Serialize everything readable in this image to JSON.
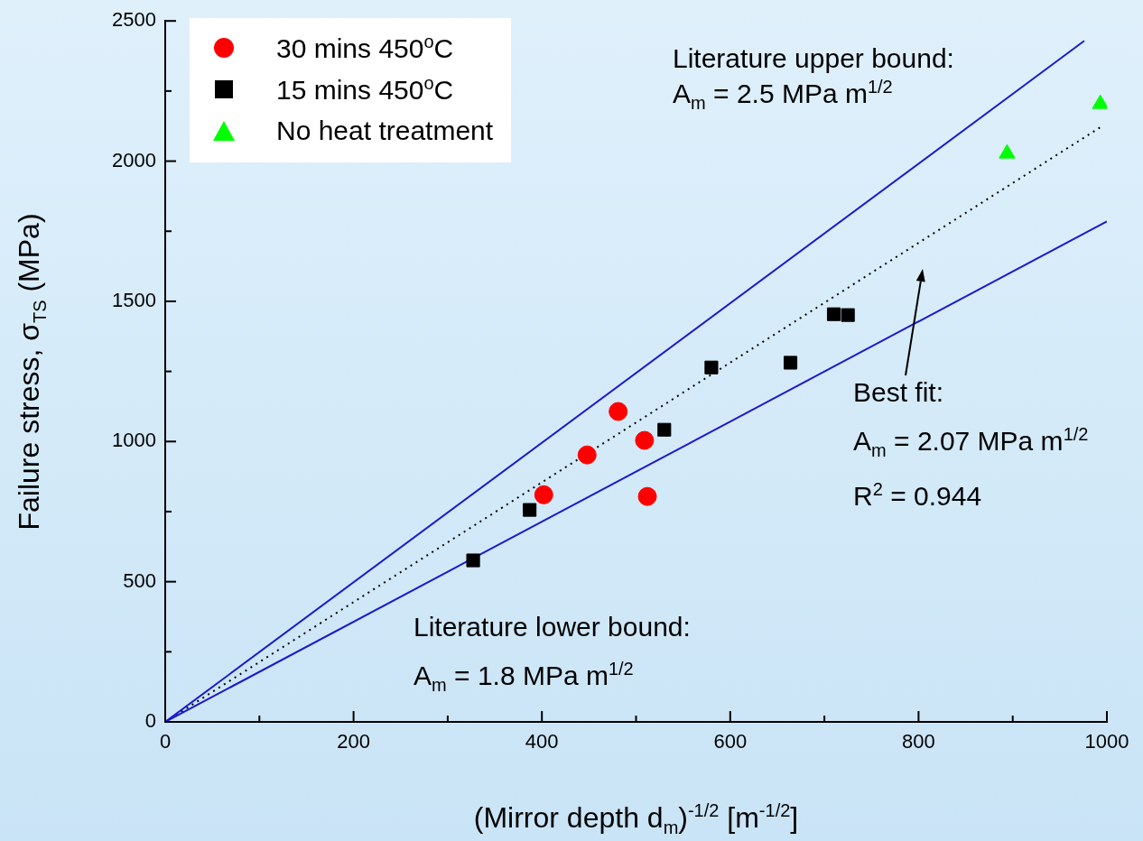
{
  "chart_data": {
    "type": "scatter",
    "xlabel": "(Mirror depth d$_{m}$)$^{-1/2}$ [m$^{-1/2}$]",
    "ylabel": "Failure stress, σ$_{TS}$ (MPa)",
    "xlim": [
      0,
      1000
    ],
    "ylim": [
      0,
      2500
    ],
    "xticks": [
      0,
      {
        "value": 100,
        "label": null
      },
      200,
      {
        "value": 300,
        "label": null
      },
      400,
      {
        "value": 500,
        "label": null
      },
      600,
      {
        "value": 700,
        "label": null
      },
      800,
      {
        "value": 900,
        "label": null
      },
      1000
    ],
    "yticks": [
      0,
      {
        "value": 250,
        "label": null
      },
      500,
      {
        "value": 750,
        "label": null
      },
      1000,
      {
        "value": 1250,
        "label": null
      },
      1500,
      {
        "value": 1750,
        "label": null
      },
      2000,
      {
        "value": 2250,
        "label": null
      },
      2500
    ],
    "grid": false,
    "legend": "top left",
    "series": [
      {
        "name": "30 mins 450$^{o}$C",
        "marker": "circle",
        "color": "#ff0000",
        "x": [
          402,
          448,
          481,
          509,
          512
        ],
        "values": [
          810,
          952,
          1107,
          1004,
          804
        ]
      },
      {
        "name": "15 mins 450$^{o}$C",
        "marker": "square",
        "color": "#000000",
        "x": [
          327,
          387,
          530,
          580,
          664,
          710,
          725
        ],
        "values": [
          576,
          756,
          1042,
          1264,
          1281,
          1454,
          1451
        ]
      },
      {
        "name": "No heat treatment",
        "marker": "triangle",
        "color": "#00ff00",
        "x": [
          894,
          993
        ],
        "values": [
          2027,
          2204
        ]
      },
      {
        "type": "line",
        "marker": "none",
        "line_style": "solid",
        "color": "#1a1acd",
        "x": [
          0,
          976
        ],
        "values": [
          0,
          2429
        ]
      },
      {
        "type": "line",
        "marker": "none",
        "line_style": "solid",
        "color": "#1a1acd",
        "x": [
          0,
          1000
        ],
        "values": [
          0,
          1785
        ]
      },
      {
        "type": "line",
        "marker": "none",
        "line_style": "dotted",
        "color": "#000000",
        "x": [
          0,
          996
        ],
        "values": [
          0,
          2127
        ]
      }
    ],
    "annotations": [
      "Literature upper bound:",
      "A$_{m}$ = 2.5 MPa m$^{1/2}$",
      "Best fit:",
      "A$_{m}$ = 2.07 MPa m$^{1/2}$",
      "R$^{2}$ = 0.944",
      "Literature lower bound:",
      "A$_{m}$ = 1.8 MPa m$^{1/2}$"
    ]
  }
}
